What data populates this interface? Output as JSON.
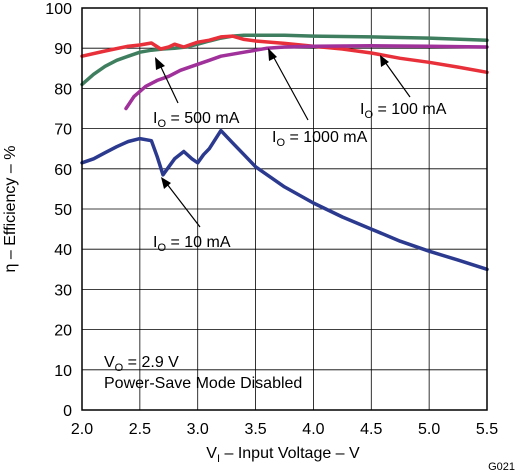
{
  "chart_data": {
    "type": "line",
    "xlabel": "V",
    "xlabel_sub": "I",
    "xlabel_rest": " – Input Voltage – V",
    "ylabel": "η – Efficiency – %",
    "xlim": [
      2.0,
      5.5
    ],
    "ylim": [
      0,
      100
    ],
    "x_ticks": [
      "2.0",
      "2.5",
      "3.0",
      "3.5",
      "4.0",
      "4.5",
      "5.0",
      "5.5"
    ],
    "y_ticks": [
      "0",
      "10",
      "20",
      "30",
      "40",
      "50",
      "60",
      "70",
      "80",
      "90",
      "100"
    ],
    "grid": true,
    "series": [
      {
        "name": "IO = 500 mA",
        "label_main": "I",
        "label_sub": "O",
        "label_rest": " = 500 mA",
        "color": "#3f7f5f",
        "points": [
          [
            2.0,
            81
          ],
          [
            2.1,
            83.5
          ],
          [
            2.2,
            85.5
          ],
          [
            2.3,
            87
          ],
          [
            2.4,
            88
          ],
          [
            2.5,
            89
          ],
          [
            2.6,
            89.5
          ],
          [
            2.7,
            89.8
          ],
          [
            2.8,
            90
          ],
          [
            2.9,
            90.3
          ],
          [
            3.0,
            91
          ],
          [
            3.1,
            91.8
          ],
          [
            3.2,
            92.5
          ],
          [
            3.3,
            93
          ],
          [
            3.4,
            93.2
          ],
          [
            3.5,
            93.2
          ],
          [
            3.75,
            93.2
          ],
          [
            4.0,
            93
          ],
          [
            4.5,
            92.8
          ],
          [
            5.0,
            92.5
          ],
          [
            5.5,
            92
          ]
        ]
      },
      {
        "name": "IO = 100 mA",
        "label_main": "I",
        "label_sub": "O",
        "label_rest": " = 100 mA",
        "color": "#e8303a",
        "points": [
          [
            2.0,
            88
          ],
          [
            2.2,
            89.3
          ],
          [
            2.4,
            90.5
          ],
          [
            2.5,
            90.8
          ],
          [
            2.6,
            91.3
          ],
          [
            2.68,
            89.8
          ],
          [
            2.75,
            90.3
          ],
          [
            2.8,
            91
          ],
          [
            2.88,
            90.3
          ],
          [
            2.95,
            91
          ],
          [
            3.0,
            91.5
          ],
          [
            3.1,
            92
          ],
          [
            3.2,
            92.8
          ],
          [
            3.3,
            93
          ],
          [
            3.4,
            92.2
          ],
          [
            3.5,
            91.8
          ],
          [
            3.75,
            91.2
          ],
          [
            4.0,
            90.5
          ],
          [
            4.25,
            89.8
          ],
          [
            4.5,
            88.8
          ],
          [
            4.75,
            87.5
          ],
          [
            5.0,
            86.5
          ],
          [
            5.25,
            85.3
          ],
          [
            5.5,
            84
          ]
        ]
      },
      {
        "name": "IO = 1000 mA",
        "label_main": "I",
        "label_sub": "O",
        "label_rest": " = 1000 mA",
        "color": "#a0309a",
        "points": [
          [
            2.38,
            75
          ],
          [
            2.45,
            78
          ],
          [
            2.55,
            80.5
          ],
          [
            2.65,
            82
          ],
          [
            2.75,
            83
          ],
          [
            2.85,
            84.5
          ],
          [
            3.0,
            86
          ],
          [
            3.1,
            87
          ],
          [
            3.2,
            88
          ],
          [
            3.3,
            88.5
          ],
          [
            3.4,
            89
          ],
          [
            3.5,
            89.5
          ],
          [
            3.6,
            90
          ],
          [
            3.75,
            90.3
          ],
          [
            4.0,
            90.5
          ],
          [
            4.5,
            90.6
          ],
          [
            5.0,
            90.5
          ],
          [
            5.5,
            90.3
          ]
        ]
      },
      {
        "name": "IO = 10 mA",
        "label_main": "I",
        "label_sub": "O",
        "label_rest": " = 10 mA",
        "color": "#2b3a8f",
        "points": [
          [
            2.0,
            61.5
          ],
          [
            2.1,
            62.5
          ],
          [
            2.2,
            64
          ],
          [
            2.3,
            65.5
          ],
          [
            2.4,
            66.8
          ],
          [
            2.5,
            67.5
          ],
          [
            2.6,
            67
          ],
          [
            2.65,
            63
          ],
          [
            2.7,
            58.5
          ],
          [
            2.8,
            62.5
          ],
          [
            2.88,
            64.3
          ],
          [
            2.95,
            62.5
          ],
          [
            3.0,
            61.5
          ],
          [
            3.05,
            63.5
          ],
          [
            3.1,
            65
          ],
          [
            3.2,
            69.5
          ],
          [
            3.3,
            66.5
          ],
          [
            3.4,
            63.5
          ],
          [
            3.5,
            60.5
          ],
          [
            3.75,
            55.5
          ],
          [
            4.0,
            51.5
          ],
          [
            4.25,
            48
          ],
          [
            4.5,
            45
          ],
          [
            4.75,
            42
          ],
          [
            5.0,
            39.5
          ],
          [
            5.25,
            37.3
          ],
          [
            5.5,
            35
          ]
        ]
      }
    ],
    "annotations": {
      "condition_main": "V",
      "condition_sub": "O",
      "condition_rest": " = 2.9 V",
      "mode": "Power-Save Mode Disabled",
      "figure_code": "G021"
    }
  }
}
